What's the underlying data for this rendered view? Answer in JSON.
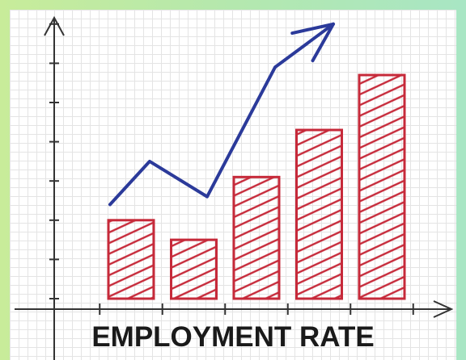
{
  "chart_data": {
    "type": "bar",
    "title": "EMPLOYMENT RATE",
    "categories": [
      "",
      "",
      "",
      "",
      ""
    ],
    "values": [
      2.0,
      1.5,
      3.1,
      4.3,
      5.7
    ],
    "ylim": [
      0,
      7
    ],
    "series": [
      {
        "type": "bar",
        "values": [
          2.0,
          1.5,
          3.1,
          4.3,
          5.7
        ]
      },
      {
        "type": "line",
        "values": [
          2.4,
          3.5,
          2.6,
          5.9,
          7.0
        ]
      }
    ],
    "grid": true,
    "colors": {
      "bar": "#c62a3a",
      "line": "#2b3a9a",
      "axis": "#333333"
    }
  }
}
